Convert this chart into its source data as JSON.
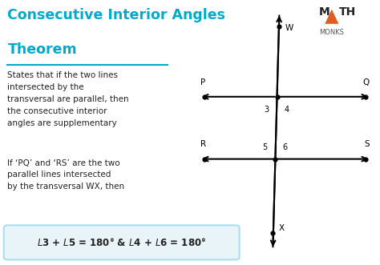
{
  "title_line1": "Consecutive Interior Angles",
  "title_line2": "Theorem",
  "title_color": "#00aacc",
  "body_text1": "States that if the two lines\nintersected by the\ntransversal are parallel, then\nthe consecutive interior\nangles are supplementary",
  "body_text2": "If ‘PQ’ and ‘RS’ are the two\nparallel lines intersected\nby the transversal WX, then",
  "bg_color": "#ffffff",
  "text_color": "#222222",
  "formula_bg": "#e8f4f8",
  "formula_border": "#aaddee",
  "logo_triangle_color": "#e05c20",
  "logo_text_color": "#222222",
  "logo_monks_color": "#555555"
}
